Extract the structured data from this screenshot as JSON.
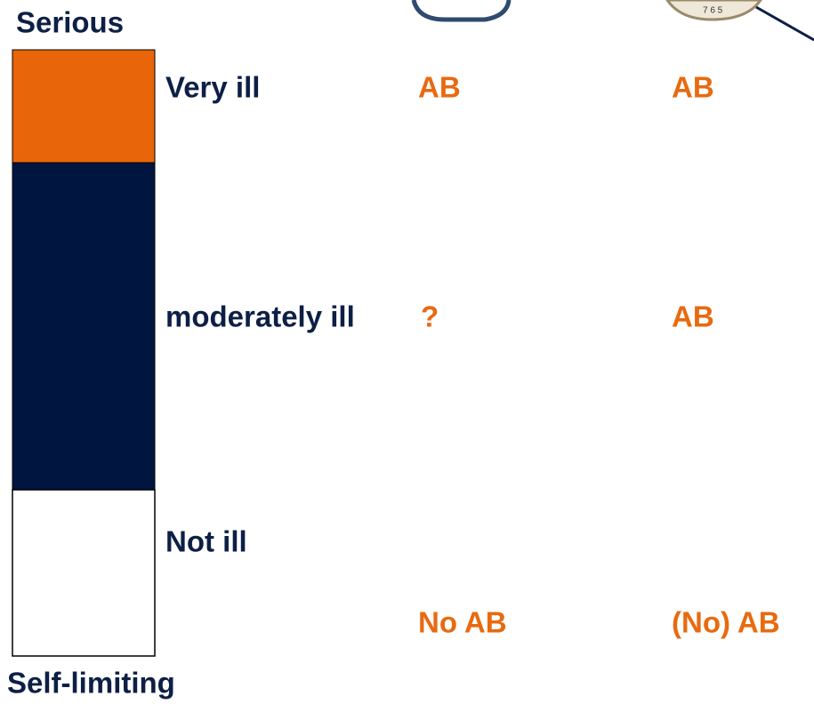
{
  "scale": {
    "top": "Serious",
    "bottom": "Self-limiting"
  },
  "rows": [
    {
      "label": "Very ill",
      "col1": "AB",
      "col2": "AB"
    },
    {
      "label": "moderately ill",
      "col1": "?",
      "col2": "AB"
    },
    {
      "label": "Not ill",
      "col1": "No AB",
      "col2": "(No) AB"
    }
  ]
}
